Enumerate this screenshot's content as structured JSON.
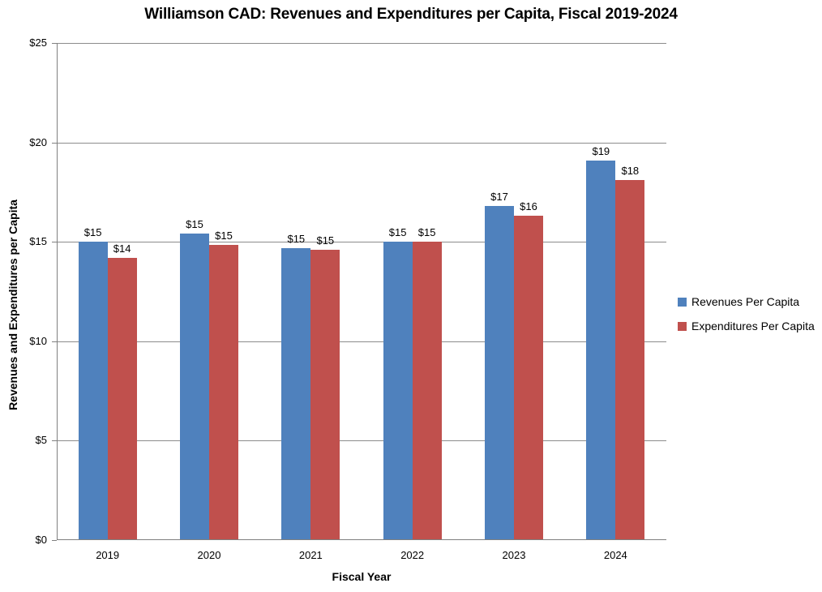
{
  "chart_data": {
    "type": "bar",
    "title": "Williamson CAD: Revenues and Expenditures per Capita, Fiscal 2019-2024",
    "xlabel": "Fiscal Year",
    "ylabel": "Revenues and Expenditures per Capita",
    "categories": [
      "2019",
      "2020",
      "2021",
      "2022",
      "2023",
      "2024"
    ],
    "series": [
      {
        "name": "Revenues Per Capita",
        "color": "#4F81BD",
        "values": [
          15.0,
          15.4,
          14.7,
          15.0,
          16.8,
          19.1
        ],
        "labels": [
          "$15",
          "$15",
          "$15",
          "$15",
          "$17",
          "$19"
        ]
      },
      {
        "name": "Expenditures Per Capita",
        "color": "#C0504D",
        "values": [
          14.2,
          14.85,
          14.6,
          15.0,
          16.3,
          18.1
        ],
        "labels": [
          "$14",
          "$15",
          "$15",
          "$15",
          "$16",
          "$18"
        ]
      }
    ],
    "ylim": [
      0,
      25
    ],
    "ytick_step": 5,
    "ytick_labels": [
      "$0",
      "$5",
      "$10",
      "$15",
      "$20",
      "$25"
    ],
    "grid": true,
    "legend_position": "right"
  },
  "colors": {
    "grid": "#8C8C8C",
    "axis": "#808080",
    "text": "#000000",
    "background": "#FFFFFF"
  }
}
